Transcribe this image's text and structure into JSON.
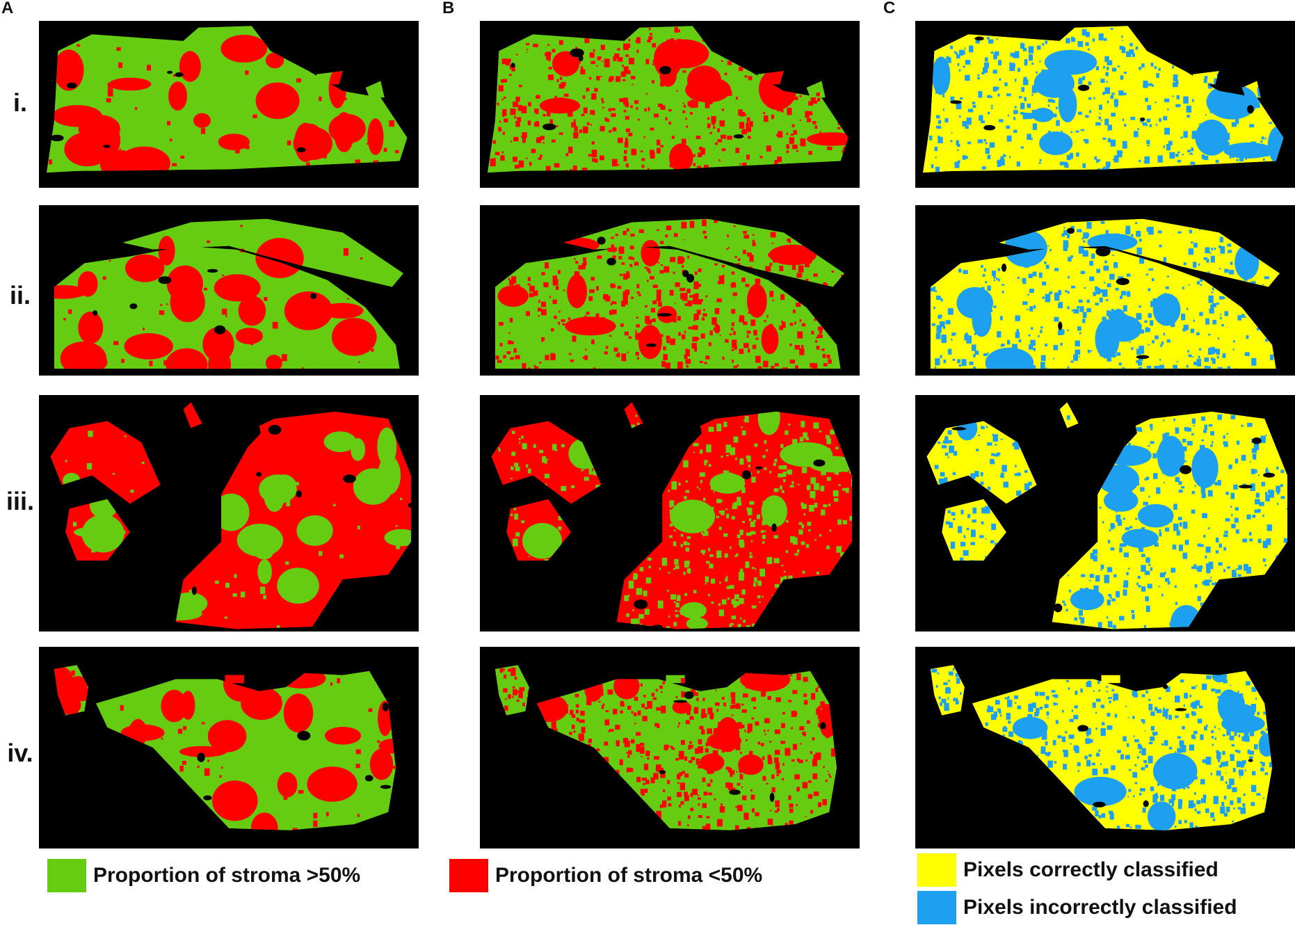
{
  "columns": [
    {
      "label": "A"
    },
    {
      "label": "B"
    },
    {
      "label": "C"
    }
  ],
  "rows": [
    {
      "label": "i."
    },
    {
      "label": "ii."
    },
    {
      "label": "iii."
    },
    {
      "label": "iv."
    }
  ],
  "colors": {
    "stroma_high": "#66cc11",
    "stroma_low": "#ff0000",
    "correct": "#ffff00",
    "incorrect": "#1ea0f0",
    "background": "#000000"
  },
  "legend": {
    "stroma_high": {
      "label": "Proportion of stroma >50%",
      "color": "#66cc11"
    },
    "stroma_low": {
      "label": "Proportion of stroma <50%",
      "color": "#ff0000"
    },
    "correct": {
      "label": "Pixels correctly classified",
      "color": "#ffff00"
    },
    "incorrect": {
      "label": "Pixels incorrectly classified",
      "color": "#1ea0f0"
    }
  }
}
